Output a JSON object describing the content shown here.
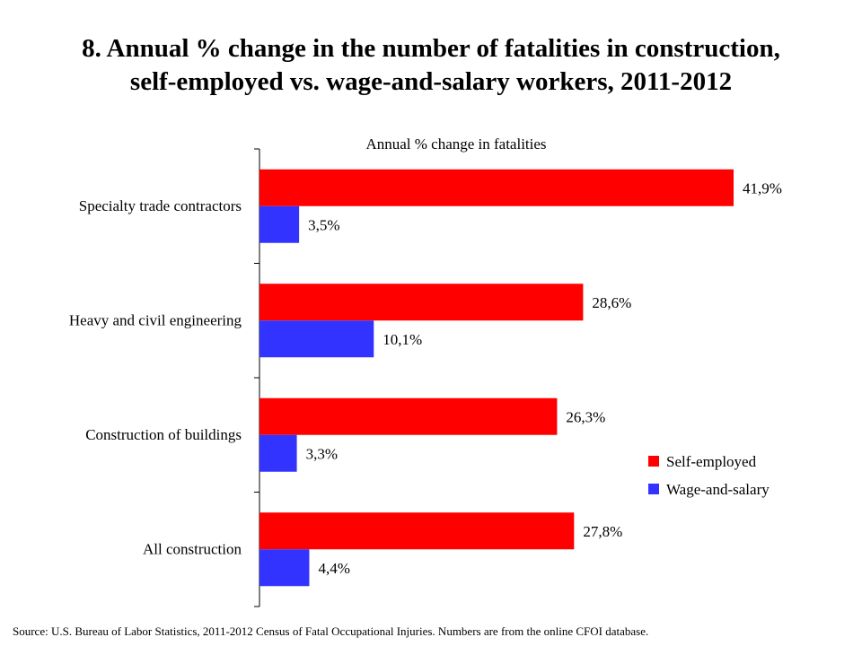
{
  "title_line1": "8. Annual % change in the number of fatalities in construction,",
  "title_line2": "self-employed vs. wage-and-salary workers, 2011-2012",
  "source": "Source: U.S. Bureau of Labor Statistics, 2011-2012 Census of Fatal Occupational Injuries. Numbers are from the online CFOI database.",
  "chart_data": {
    "type": "bar",
    "orientation": "horizontal",
    "title": "Annual % change in fatalities",
    "xlabel": "",
    "ylabel": "",
    "categories": [
      "Specialty trade contractors",
      "Heavy and civil engineering",
      "Construction of buildings",
      "All construction"
    ],
    "series": [
      {
        "name": "Self-employed",
        "color": "#ff0000",
        "values": [
          41.9,
          28.6,
          26.3,
          27.8
        ],
        "labels": [
          "41,9%",
          "28,6%",
          "26,3%",
          "27,8%"
        ]
      },
      {
        "name": "Wage-and-salary",
        "color": "#3333ff",
        "values": [
          3.5,
          10.1,
          3.3,
          4.4
        ],
        "labels": [
          "3,5%",
          "10,1%",
          "3,3%",
          "4,4%"
        ]
      }
    ],
    "xlim": [
      0,
      45
    ],
    "grid": false,
    "legend_position": "bottom-right"
  }
}
